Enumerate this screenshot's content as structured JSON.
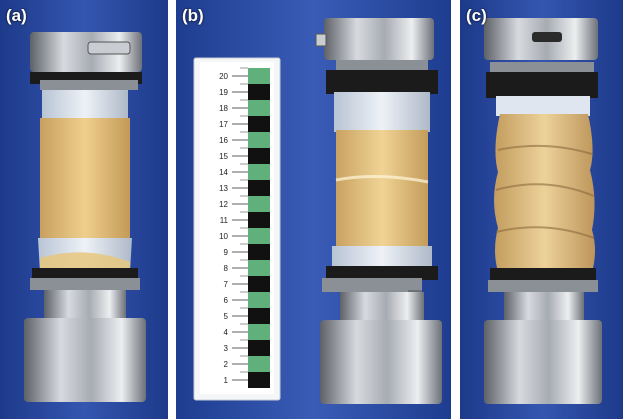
{
  "panels": [
    {
      "label": "(a)"
    },
    {
      "label": "(b)"
    },
    {
      "label": "(c)"
    }
  ],
  "ruler": {
    "ticks": [
      "20",
      "19",
      "18",
      "17",
      "16",
      "15",
      "14",
      "13",
      "12",
      "11",
      "10",
      "9",
      "8",
      "7",
      "6",
      "5",
      "4",
      "3",
      "2",
      "1"
    ]
  },
  "colors": {
    "background_blue": "#2a4aa0",
    "steel": "#9a9ea6",
    "soil": "#e8c27a",
    "membrane": "#d9e2ee",
    "ruler_green": "#5fb07a"
  }
}
